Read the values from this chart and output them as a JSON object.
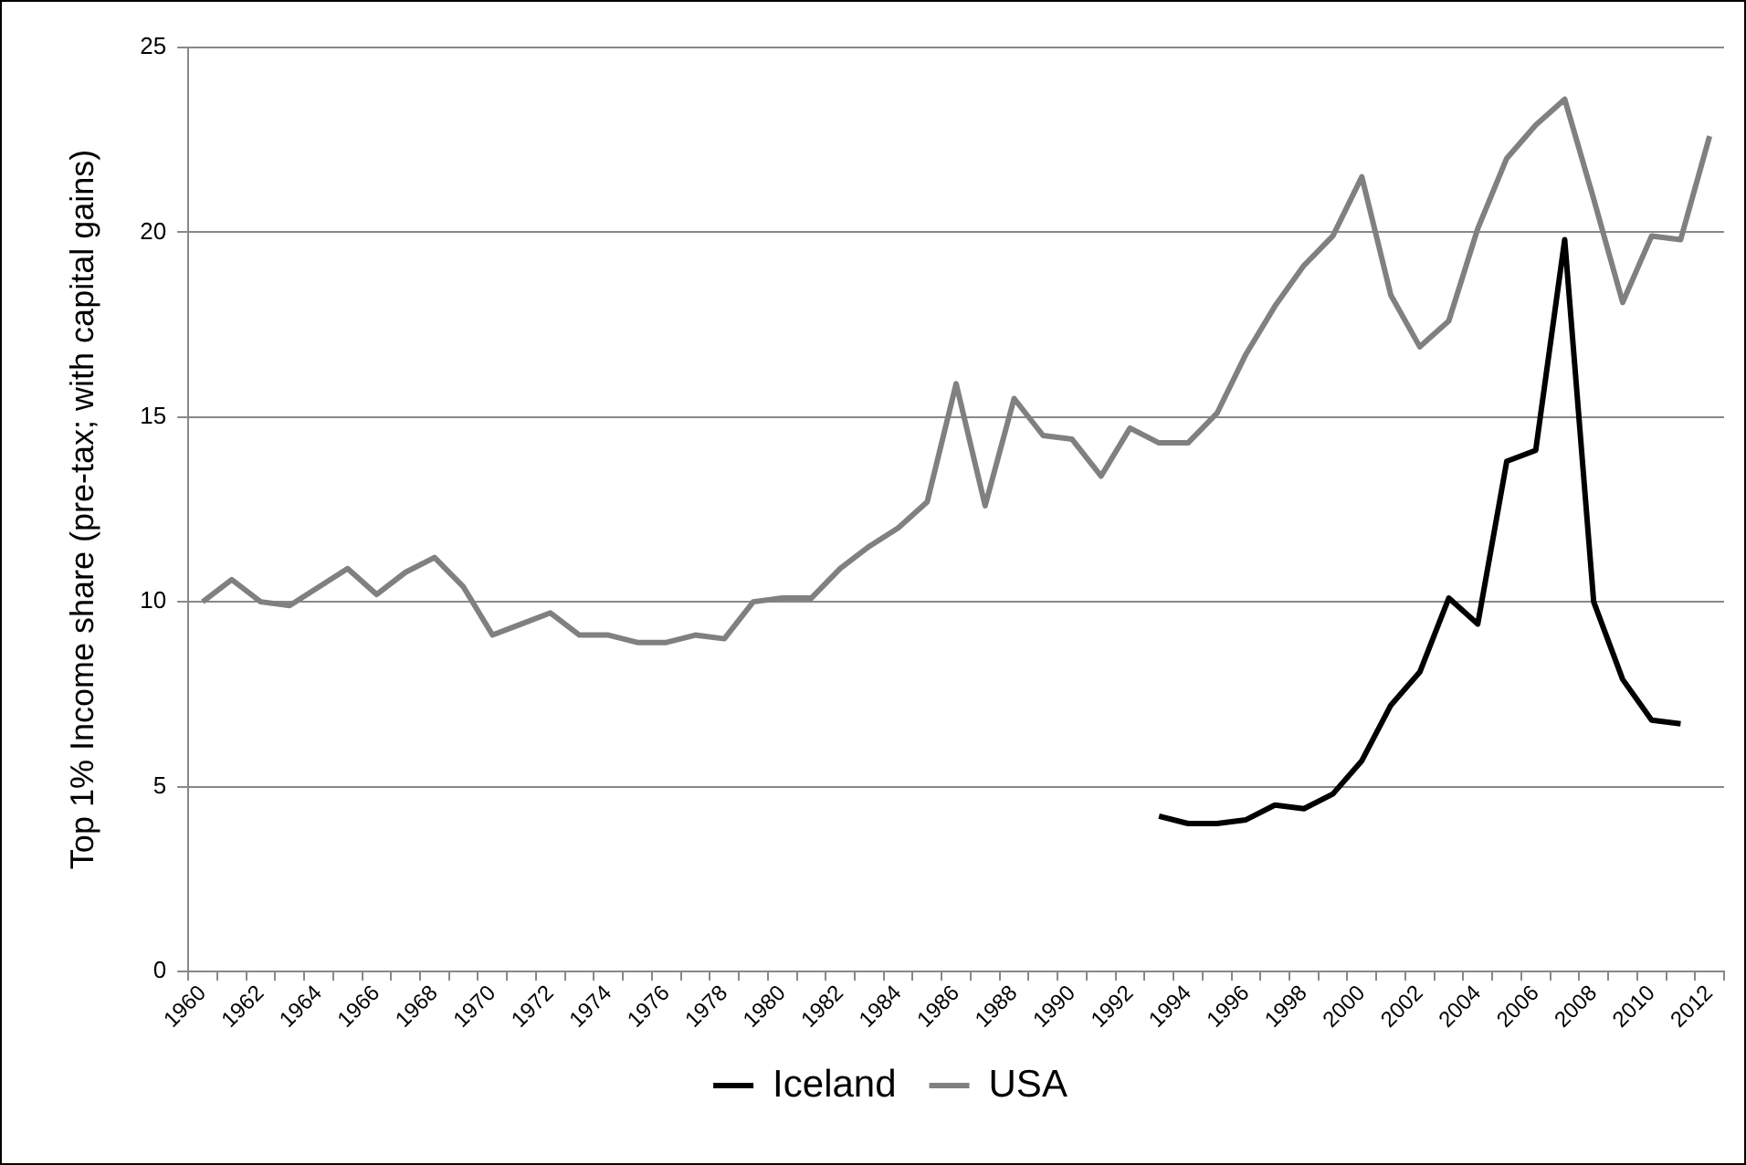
{
  "chart_data": {
    "type": "line",
    "ylabel": "Top 1% Income share (pre-tax; with capital gains)",
    "categories": [
      "1960",
      null,
      "1962",
      null,
      "1964",
      null,
      "1966",
      null,
      "1968",
      null,
      "1970",
      null,
      "1972",
      null,
      "1974",
      null,
      "1976",
      null,
      "1978",
      null,
      "1980",
      null,
      "1982",
      null,
      "1984",
      null,
      "1986",
      null,
      "1988",
      null,
      "1990",
      null,
      "1992",
      null,
      "1994",
      null,
      "1996",
      null,
      "1998",
      null,
      "2000",
      null,
      "2002",
      null,
      "2004",
      null,
      "2006",
      null,
      "2008",
      null,
      "2010",
      null,
      "2012"
    ],
    "series": [
      {
        "name": "Iceland",
        "color": "#000000",
        "values": [
          null,
          null,
          null,
          null,
          null,
          null,
          null,
          null,
          null,
          null,
          null,
          null,
          null,
          null,
          null,
          null,
          null,
          null,
          null,
          null,
          null,
          null,
          null,
          null,
          null,
          null,
          null,
          null,
          null,
          null,
          null,
          null,
          null,
          4.2,
          4.0,
          4.0,
          4.1,
          4.5,
          4.4,
          4.8,
          5.7,
          7.2,
          8.1,
          10.1,
          9.4,
          13.8,
          14.1,
          19.8,
          10.0,
          7.9,
          6.8,
          6.7,
          null
        ]
      },
      {
        "name": "USA",
        "color": "#808080",
        "values": [
          10.0,
          10.6,
          10.0,
          9.9,
          10.4,
          10.9,
          10.2,
          10.8,
          11.2,
          10.4,
          9.1,
          9.4,
          9.7,
          9.1,
          9.1,
          8.9,
          8.9,
          9.1,
          9.0,
          10.0,
          10.1,
          10.1,
          10.9,
          11.5,
          12.0,
          12.7,
          15.9,
          12.6,
          15.5,
          14.5,
          14.4,
          13.4,
          14.7,
          14.3,
          14.3,
          15.1,
          16.7,
          18.0,
          19.1,
          19.9,
          21.5,
          18.3,
          16.9,
          17.6,
          20.1,
          22.0,
          22.9,
          23.6,
          20.9,
          18.1,
          19.9,
          19.8,
          22.6
        ]
      }
    ],
    "ylim": [
      0,
      25
    ],
    "yticks": [
      0,
      5,
      10,
      15,
      20,
      25
    ],
    "grid": "y",
    "legend": "bottom",
    "marker": "none",
    "line_style": "solid"
  }
}
